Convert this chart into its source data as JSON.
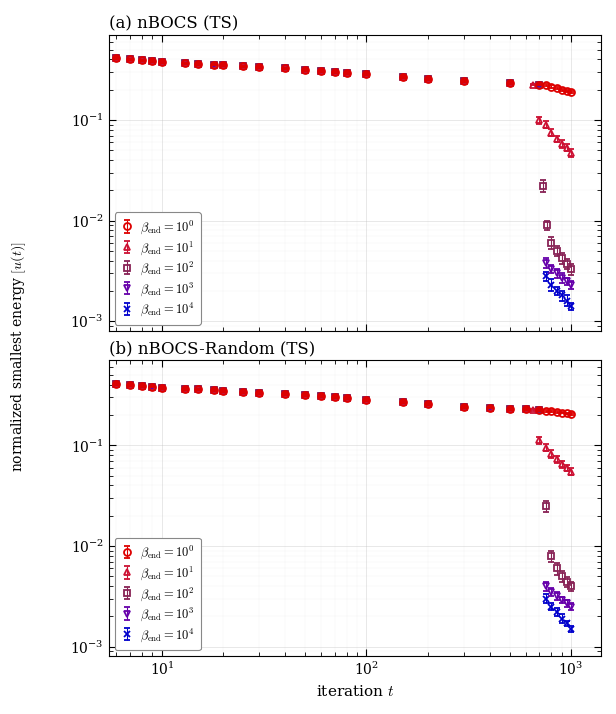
{
  "title_a": "(a) nBOCS (TS)",
  "title_b": "(b) nBOCS-Random (TS)",
  "xlabel": "iteration $t$",
  "ylabel": "normalized smallest energy $[u(t)]$",
  "ylim": [
    0.0008,
    0.7
  ],
  "xlim": [
    5.5,
    1400
  ],
  "panels": [
    {
      "title": "(a) nBOCS (TS)",
      "series": [
        {
          "x": [
            6,
            7,
            8,
            9,
            10,
            13,
            15,
            18,
            20,
            25,
            30,
            40,
            50,
            60,
            70,
            80,
            100,
            150,
            200,
            300,
            500,
            700,
            750,
            800,
            850,
            900,
            950,
            1000
          ],
          "y": [
            0.41,
            0.4,
            0.39,
            0.385,
            0.375,
            0.365,
            0.36,
            0.355,
            0.35,
            0.34,
            0.335,
            0.325,
            0.315,
            0.308,
            0.3,
            0.295,
            0.285,
            0.268,
            0.258,
            0.243,
            0.232,
            0.225,
            0.222,
            0.215,
            0.207,
            0.2,
            0.193,
            0.188
          ],
          "yerr": [
            0.008,
            0.008,
            0.008,
            0.008,
            0.008,
            0.007,
            0.007,
            0.007,
            0.007,
            0.007,
            0.007,
            0.007,
            0.007,
            0.007,
            0.007,
            0.007,
            0.006,
            0.006,
            0.006,
            0.005,
            0.005,
            0.005,
            0.005,
            0.005,
            0.005,
            0.005,
            0.005,
            0.004
          ]
        },
        {
          "x": [
            6,
            7,
            8,
            9,
            10,
            13,
            15,
            18,
            20,
            25,
            30,
            40,
            50,
            60,
            70,
            80,
            100,
            150,
            200,
            300,
            500,
            650,
            700,
            750,
            800,
            850,
            900,
            950,
            1000
          ],
          "y": [
            0.41,
            0.4,
            0.39,
            0.385,
            0.375,
            0.365,
            0.36,
            0.355,
            0.35,
            0.34,
            0.335,
            0.325,
            0.315,
            0.308,
            0.3,
            0.295,
            0.285,
            0.268,
            0.258,
            0.243,
            0.232,
            0.225,
            0.1,
            0.09,
            0.075,
            0.065,
            0.058,
            0.053,
            0.047
          ],
          "yerr": [
            0.008,
            0.008,
            0.008,
            0.008,
            0.008,
            0.007,
            0.007,
            0.007,
            0.007,
            0.007,
            0.007,
            0.007,
            0.007,
            0.007,
            0.007,
            0.007,
            0.006,
            0.006,
            0.006,
            0.005,
            0.005,
            0.005,
            0.008,
            0.007,
            0.006,
            0.005,
            0.005,
            0.004,
            0.004
          ]
        },
        {
          "x": [
            6,
            7,
            8,
            9,
            10,
            13,
            15,
            18,
            20,
            25,
            30,
            40,
            50,
            60,
            70,
            80,
            100,
            150,
            200,
            300,
            500,
            700,
            730,
            760,
            800,
            850,
            900,
            950,
            1000
          ],
          "y": [
            0.41,
            0.4,
            0.39,
            0.385,
            0.375,
            0.365,
            0.36,
            0.355,
            0.35,
            0.34,
            0.335,
            0.325,
            0.315,
            0.308,
            0.3,
            0.295,
            0.285,
            0.268,
            0.258,
            0.243,
            0.232,
            0.225,
            0.022,
            0.009,
            0.006,
            0.005,
            0.0042,
            0.0037,
            0.0033
          ],
          "yerr": [
            0.008,
            0.008,
            0.008,
            0.008,
            0.008,
            0.007,
            0.007,
            0.007,
            0.007,
            0.007,
            0.007,
            0.007,
            0.007,
            0.007,
            0.007,
            0.007,
            0.006,
            0.006,
            0.006,
            0.005,
            0.005,
            0.005,
            0.003,
            0.001,
            0.0008,
            0.0006,
            0.0005,
            0.0004,
            0.0004
          ]
        },
        {
          "x": [
            6,
            7,
            8,
            9,
            10,
            13,
            15,
            18,
            20,
            25,
            30,
            40,
            50,
            60,
            70,
            80,
            100,
            150,
            200,
            300,
            500,
            700,
            750,
            800,
            850,
            900,
            950,
            1000
          ],
          "y": [
            0.41,
            0.4,
            0.39,
            0.385,
            0.375,
            0.365,
            0.36,
            0.355,
            0.35,
            0.34,
            0.335,
            0.325,
            0.315,
            0.308,
            0.3,
            0.295,
            0.285,
            0.268,
            0.258,
            0.243,
            0.232,
            0.225,
            0.0038,
            0.0033,
            0.003,
            0.0027,
            0.0025,
            0.0023
          ],
          "yerr": [
            0.008,
            0.008,
            0.008,
            0.008,
            0.008,
            0.007,
            0.007,
            0.007,
            0.007,
            0.007,
            0.007,
            0.007,
            0.007,
            0.007,
            0.007,
            0.007,
            0.006,
            0.006,
            0.006,
            0.005,
            0.005,
            0.005,
            0.0004,
            0.0003,
            0.0003,
            0.0003,
            0.0002,
            0.0002
          ]
        },
        {
          "x": [
            6,
            7,
            8,
            9,
            10,
            13,
            15,
            18,
            20,
            25,
            30,
            40,
            50,
            60,
            70,
            80,
            100,
            150,
            200,
            300,
            500,
            700,
            750,
            800,
            850,
            900,
            950,
            1000
          ],
          "y": [
            0.41,
            0.4,
            0.39,
            0.385,
            0.375,
            0.365,
            0.36,
            0.355,
            0.35,
            0.34,
            0.335,
            0.325,
            0.315,
            0.308,
            0.3,
            0.295,
            0.285,
            0.268,
            0.258,
            0.243,
            0.232,
            0.225,
            0.0028,
            0.0023,
            0.002,
            0.0018,
            0.0016,
            0.0014
          ],
          "yerr": [
            0.008,
            0.008,
            0.008,
            0.008,
            0.008,
            0.007,
            0.007,
            0.007,
            0.007,
            0.007,
            0.007,
            0.007,
            0.007,
            0.007,
            0.007,
            0.007,
            0.006,
            0.006,
            0.006,
            0.005,
            0.005,
            0.005,
            0.0003,
            0.0003,
            0.0002,
            0.0002,
            0.0002,
            0.0001
          ]
        }
      ]
    },
    {
      "title": "(b) nBOCS-Random (TS)",
      "series": [
        {
          "x": [
            6,
            7,
            8,
            9,
            10,
            13,
            15,
            18,
            20,
            25,
            30,
            40,
            50,
            60,
            70,
            80,
            100,
            150,
            200,
            300,
            400,
            500,
            600,
            700,
            750,
            800,
            850,
            900,
            950,
            1000
          ],
          "y": [
            0.41,
            0.4,
            0.39,
            0.385,
            0.375,
            0.365,
            0.36,
            0.355,
            0.35,
            0.34,
            0.335,
            0.325,
            0.315,
            0.308,
            0.3,
            0.295,
            0.285,
            0.268,
            0.258,
            0.243,
            0.238,
            0.232,
            0.228,
            0.224,
            0.222,
            0.219,
            0.215,
            0.212,
            0.208,
            0.205
          ],
          "yerr": [
            0.008,
            0.008,
            0.008,
            0.008,
            0.008,
            0.007,
            0.007,
            0.007,
            0.007,
            0.007,
            0.007,
            0.007,
            0.007,
            0.007,
            0.007,
            0.007,
            0.006,
            0.006,
            0.006,
            0.005,
            0.005,
            0.005,
            0.005,
            0.005,
            0.005,
            0.005,
            0.005,
            0.004,
            0.004,
            0.004
          ]
        },
        {
          "x": [
            6,
            7,
            8,
            9,
            10,
            13,
            15,
            18,
            20,
            25,
            30,
            40,
            50,
            60,
            70,
            80,
            100,
            150,
            200,
            300,
            400,
            500,
            600,
            650,
            700,
            750,
            800,
            850,
            900,
            950,
            1000
          ],
          "y": [
            0.41,
            0.4,
            0.39,
            0.385,
            0.375,
            0.365,
            0.36,
            0.355,
            0.35,
            0.34,
            0.335,
            0.325,
            0.315,
            0.308,
            0.3,
            0.295,
            0.285,
            0.268,
            0.258,
            0.243,
            0.238,
            0.232,
            0.228,
            0.224,
            0.112,
            0.095,
            0.082,
            0.073,
            0.065,
            0.06,
            0.055
          ],
          "yerr": [
            0.008,
            0.008,
            0.008,
            0.008,
            0.008,
            0.007,
            0.007,
            0.007,
            0.007,
            0.007,
            0.007,
            0.007,
            0.007,
            0.007,
            0.007,
            0.007,
            0.006,
            0.006,
            0.006,
            0.005,
            0.005,
            0.005,
            0.005,
            0.005,
            0.009,
            0.008,
            0.007,
            0.006,
            0.005,
            0.004,
            0.004
          ]
        },
        {
          "x": [
            6,
            7,
            8,
            9,
            10,
            13,
            15,
            18,
            20,
            25,
            30,
            40,
            50,
            60,
            70,
            80,
            100,
            150,
            200,
            300,
            400,
            500,
            600,
            700,
            750,
            800,
            850,
            900,
            950,
            1000
          ],
          "y": [
            0.41,
            0.4,
            0.39,
            0.385,
            0.375,
            0.365,
            0.36,
            0.355,
            0.35,
            0.34,
            0.335,
            0.325,
            0.315,
            0.308,
            0.3,
            0.295,
            0.285,
            0.268,
            0.258,
            0.243,
            0.238,
            0.232,
            0.228,
            0.224,
            0.025,
            0.008,
            0.006,
            0.005,
            0.0044,
            0.004
          ],
          "yerr": [
            0.008,
            0.008,
            0.008,
            0.008,
            0.008,
            0.007,
            0.007,
            0.007,
            0.007,
            0.007,
            0.007,
            0.007,
            0.007,
            0.007,
            0.007,
            0.007,
            0.006,
            0.006,
            0.006,
            0.005,
            0.005,
            0.005,
            0.005,
            0.005,
            0.003,
            0.001,
            0.0008,
            0.0006,
            0.0005,
            0.0004
          ]
        },
        {
          "x": [
            6,
            7,
            8,
            9,
            10,
            13,
            15,
            18,
            20,
            25,
            30,
            40,
            50,
            60,
            70,
            80,
            100,
            150,
            200,
            300,
            400,
            500,
            600,
            700,
            750,
            800,
            850,
            900,
            950,
            1000
          ],
          "y": [
            0.41,
            0.4,
            0.39,
            0.385,
            0.375,
            0.365,
            0.36,
            0.355,
            0.35,
            0.34,
            0.335,
            0.325,
            0.315,
            0.308,
            0.3,
            0.295,
            0.285,
            0.268,
            0.258,
            0.243,
            0.238,
            0.232,
            0.228,
            0.224,
            0.004,
            0.0035,
            0.0032,
            0.0029,
            0.0027,
            0.0025
          ],
          "yerr": [
            0.008,
            0.008,
            0.008,
            0.008,
            0.008,
            0.007,
            0.007,
            0.007,
            0.007,
            0.007,
            0.007,
            0.007,
            0.007,
            0.007,
            0.007,
            0.007,
            0.006,
            0.006,
            0.006,
            0.005,
            0.005,
            0.005,
            0.005,
            0.005,
            0.0004,
            0.0003,
            0.0003,
            0.0002,
            0.0002,
            0.0002
          ]
        },
        {
          "x": [
            6,
            7,
            8,
            9,
            10,
            13,
            15,
            18,
            20,
            25,
            30,
            40,
            50,
            60,
            70,
            80,
            100,
            150,
            200,
            300,
            400,
            500,
            600,
            700,
            750,
            800,
            850,
            900,
            950,
            1000
          ],
          "y": [
            0.41,
            0.4,
            0.39,
            0.385,
            0.375,
            0.365,
            0.36,
            0.355,
            0.35,
            0.34,
            0.335,
            0.325,
            0.315,
            0.308,
            0.3,
            0.295,
            0.285,
            0.268,
            0.258,
            0.243,
            0.238,
            0.232,
            0.228,
            0.224,
            0.003,
            0.0025,
            0.0022,
            0.0019,
            0.0017,
            0.0015
          ],
          "yerr": [
            0.008,
            0.008,
            0.008,
            0.008,
            0.008,
            0.007,
            0.007,
            0.007,
            0.007,
            0.007,
            0.007,
            0.007,
            0.007,
            0.007,
            0.007,
            0.007,
            0.006,
            0.006,
            0.006,
            0.005,
            0.005,
            0.005,
            0.005,
            0.005,
            0.0003,
            0.0002,
            0.0002,
            0.0002,
            0.0001,
            0.0001
          ]
        }
      ]
    }
  ],
  "legend_labels": [
    "$\\beta_{\\mathrm{end}} = 10^0$",
    "$\\beta_{\\mathrm{end}} = 10^1$",
    "$\\beta_{\\mathrm{end}} = 10^2$",
    "$\\beta_{\\mathrm{end}} = 10^3$",
    "$\\beta_{\\mathrm{end}} = 10^4$"
  ],
  "colors": [
    "#dd0000",
    "#cc1133",
    "#882255",
    "#6600aa",
    "#0000cc"
  ],
  "markers": [
    "o",
    "^",
    "s",
    "v",
    "x"
  ],
  "background_color": "#ffffff"
}
